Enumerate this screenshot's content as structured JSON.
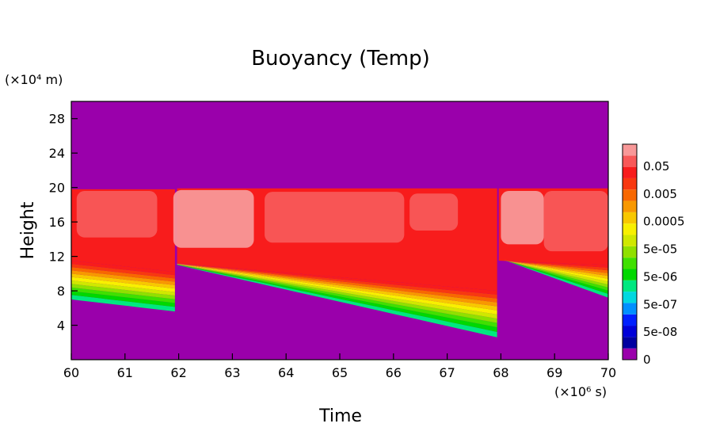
{
  "chart_data": {
    "type": "heatmap",
    "title": "Buoyancy (Temp)",
    "xlabel": "Time",
    "ylabel": "Height",
    "x_unit": "(×10⁶ s)",
    "y_unit": "(×10⁴ m)",
    "xlim": [
      60,
      70
    ],
    "ylim": [
      0,
      30
    ],
    "x_ticks": [
      "60",
      "61",
      "62",
      "63",
      "64",
      "65",
      "66",
      "67",
      "68",
      "69",
      "70"
    ],
    "y_ticks": [
      "4",
      "8",
      "12",
      "16",
      "20",
      "24",
      "28"
    ],
    "grid": false,
    "legend_position": "right",
    "colorbar": {
      "labels": [
        "0",
        "5e-08",
        "5e-07",
        "5e-06",
        "5e-05",
        "0.0005",
        "0.005",
        "0.05"
      ],
      "levels": [
        "#9a00ab",
        "#0000a0",
        "#0000d8",
        "#0020ff",
        "#0090ff",
        "#00d8e0",
        "#00e880",
        "#00d800",
        "#40e000",
        "#90e000",
        "#d0e800",
        "#f8f000",
        "#f8c800",
        "#f89800",
        "#f86800",
        "#f83810",
        "#f81c1c",
        "#f85858",
        "#f89898"
      ]
    },
    "background_color": "#9a00ab",
    "cycles": [
      {
        "start": 60.0,
        "end": 61.93,
        "top": 19.8,
        "base_start": 7.0,
        "base_end": 5.6,
        "core_start": 11.5,
        "core_end": 10.2
      },
      {
        "start": 61.97,
        "end": 67.93,
        "top": 19.9,
        "base_start": 11.0,
        "base_end": 2.6,
        "core_start": 11.2,
        "core_end": 8.0
      },
      {
        "start": 67.96,
        "end": 70.0,
        "top": 19.9,
        "base_start": 11.8,
        "base_end": 7.2,
        "core_start": 11.5,
        "core_end": 11.0
      }
    ]
  }
}
